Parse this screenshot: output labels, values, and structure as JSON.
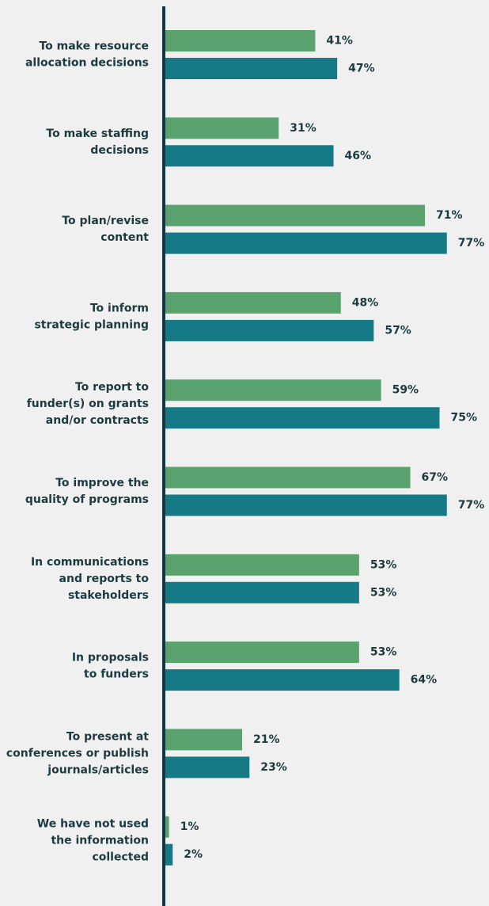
{
  "chart_data": {
    "type": "bar",
    "orientation": "horizontal",
    "categories": [
      "To make resource\nallocation decisions",
      "To make staffing\ndecisions",
      "To plan/revise\ncontent",
      "To inform\nstrategic planning",
      "To report to\nfunder(s) on grants\nand/or contracts",
      "To improve the\nquality of programs",
      "In communications\nand reports to\nstakeholders",
      "In proposals\nto funders",
      "To present at\nconferences or publish\njournals/articles",
      "We have not used\nthe information\ncollected"
    ],
    "series": [
      {
        "color": "#5ba36e",
        "values": [
          41,
          31,
          71,
          48,
          59,
          67,
          53,
          53,
          21,
          1
        ],
        "value_labels": [
          "41%",
          "31%",
          "71%",
          "48%",
          "59%",
          "67%",
          "53%",
          "53%",
          "21%",
          "1%"
        ]
      },
      {
        "color": "#157a85",
        "values": [
          47,
          46,
          77,
          57,
          75,
          77,
          53,
          64,
          23,
          2
        ],
        "value_labels": [
          "47%",
          "46%",
          "77%",
          "57%",
          "75%",
          "77%",
          "53%",
          "64%",
          "23%",
          "2%"
        ]
      }
    ]
  }
}
